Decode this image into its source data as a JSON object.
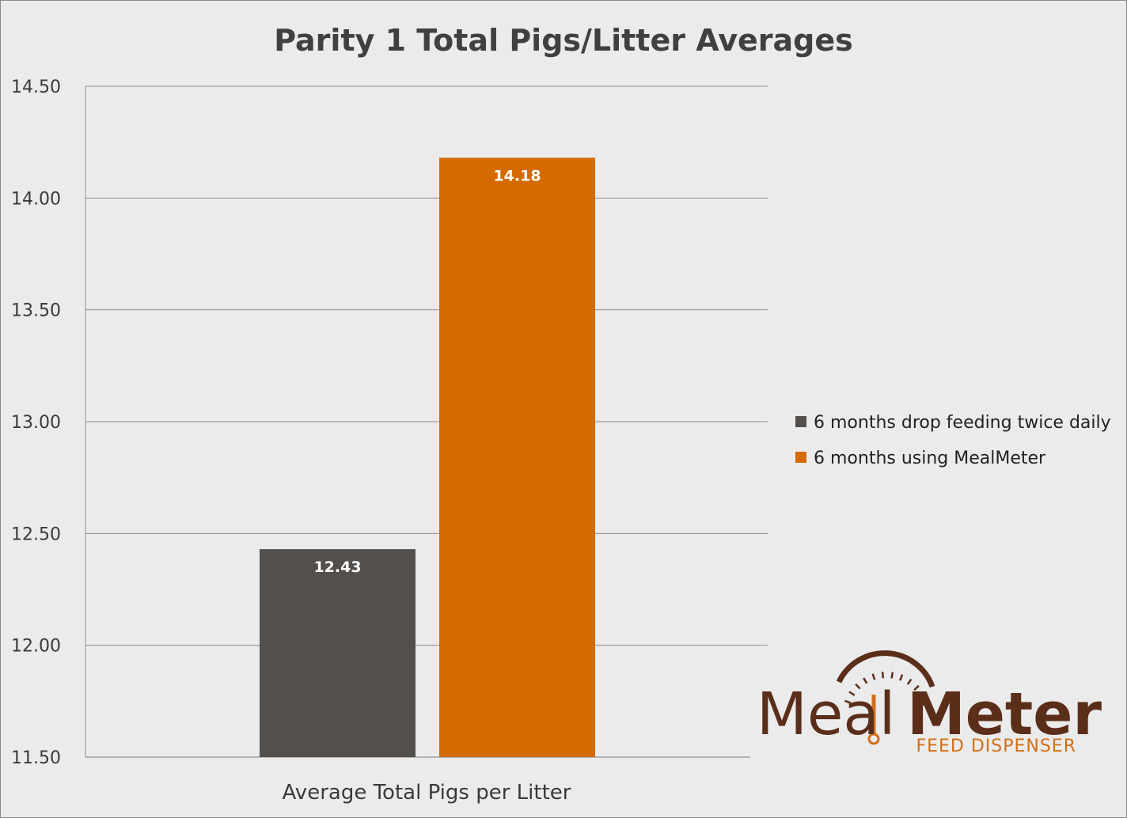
{
  "chart_data": {
    "type": "bar",
    "title": "Parity 1 Total Pigs/Litter Averages",
    "categories": [
      "Average Total Pigs per Litter"
    ],
    "series": [
      {
        "name": "6 months drop feeding twice daily",
        "values": [
          12.43
        ],
        "color": "#534f4c"
      },
      {
        "name": "6 months using MealMeter",
        "values": [
          14.18
        ],
        "color": "#d46a00"
      }
    ],
    "data_labels": [
      "12.43",
      "14.18"
    ],
    "ylim": [
      11.5,
      14.5
    ],
    "yticks": [
      11.5,
      12.0,
      12.5,
      13.0,
      13.5,
      14.0,
      14.5
    ],
    "ytick_labels": [
      "11.50",
      "12.00",
      "12.50",
      "13.00",
      "13.50",
      "14.00",
      "14.50"
    ],
    "grid": true,
    "legend_position": "right"
  },
  "logo": {
    "word1": "Meal",
    "word2": "Meter",
    "tagline": "FEED DISPENSER",
    "colors": {
      "dark": "#5b2e1a",
      "accent": "#d0701a"
    }
  }
}
